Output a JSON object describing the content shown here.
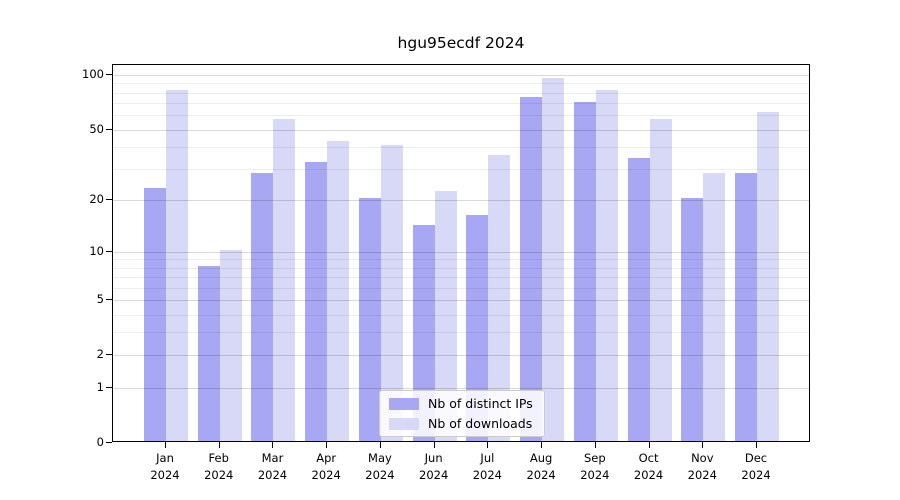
{
  "figure_title": "hgu95ecdf 2024",
  "chart_data": {
    "type": "bar",
    "title": "hgu95ecdf 2024",
    "categories": [
      "Jan 2024",
      "Feb 2024",
      "Mar 2024",
      "Apr 2024",
      "May 2024",
      "Jun 2024",
      "Jul 2024",
      "Aug 2024",
      "Sep 2024",
      "Oct 2024",
      "Nov 2024",
      "Dec 2024"
    ],
    "series": [
      {
        "name": "Nb of distinct IPs",
        "color": "#a7a7f4",
        "values": [
          23,
          8,
          28,
          32,
          20,
          14,
          16,
          74,
          69,
          34,
          20,
          28
        ]
      },
      {
        "name": "Nb of downloads",
        "color": "#d8d8f7",
        "values": [
          81,
          10,
          56,
          42,
          40,
          22,
          35,
          94,
          81,
          56,
          28,
          61
        ]
      }
    ],
    "xlabel": "",
    "ylabel": "",
    "yscale": "log1p",
    "yticks": [
      0,
      1,
      2,
      5,
      10,
      20,
      50,
      100
    ],
    "minor_yticks": [
      3,
      4,
      6,
      7,
      8,
      9,
      30,
      40,
      60,
      70,
      80,
      90
    ],
    "ylim": [
      0,
      113.6
    ],
    "grid": "horizontal-major-and-minor",
    "grid_above_bars": true,
    "legend_position": "lower center inside plot",
    "background_color": "#ffffff",
    "spine_color": "#000000"
  },
  "legend": {
    "items": [
      {
        "label": "Nb of distinct IPs",
        "color": "#a7a7f4"
      },
      {
        "label": "Nb of downloads",
        "color": "#d8d8f7"
      }
    ]
  }
}
